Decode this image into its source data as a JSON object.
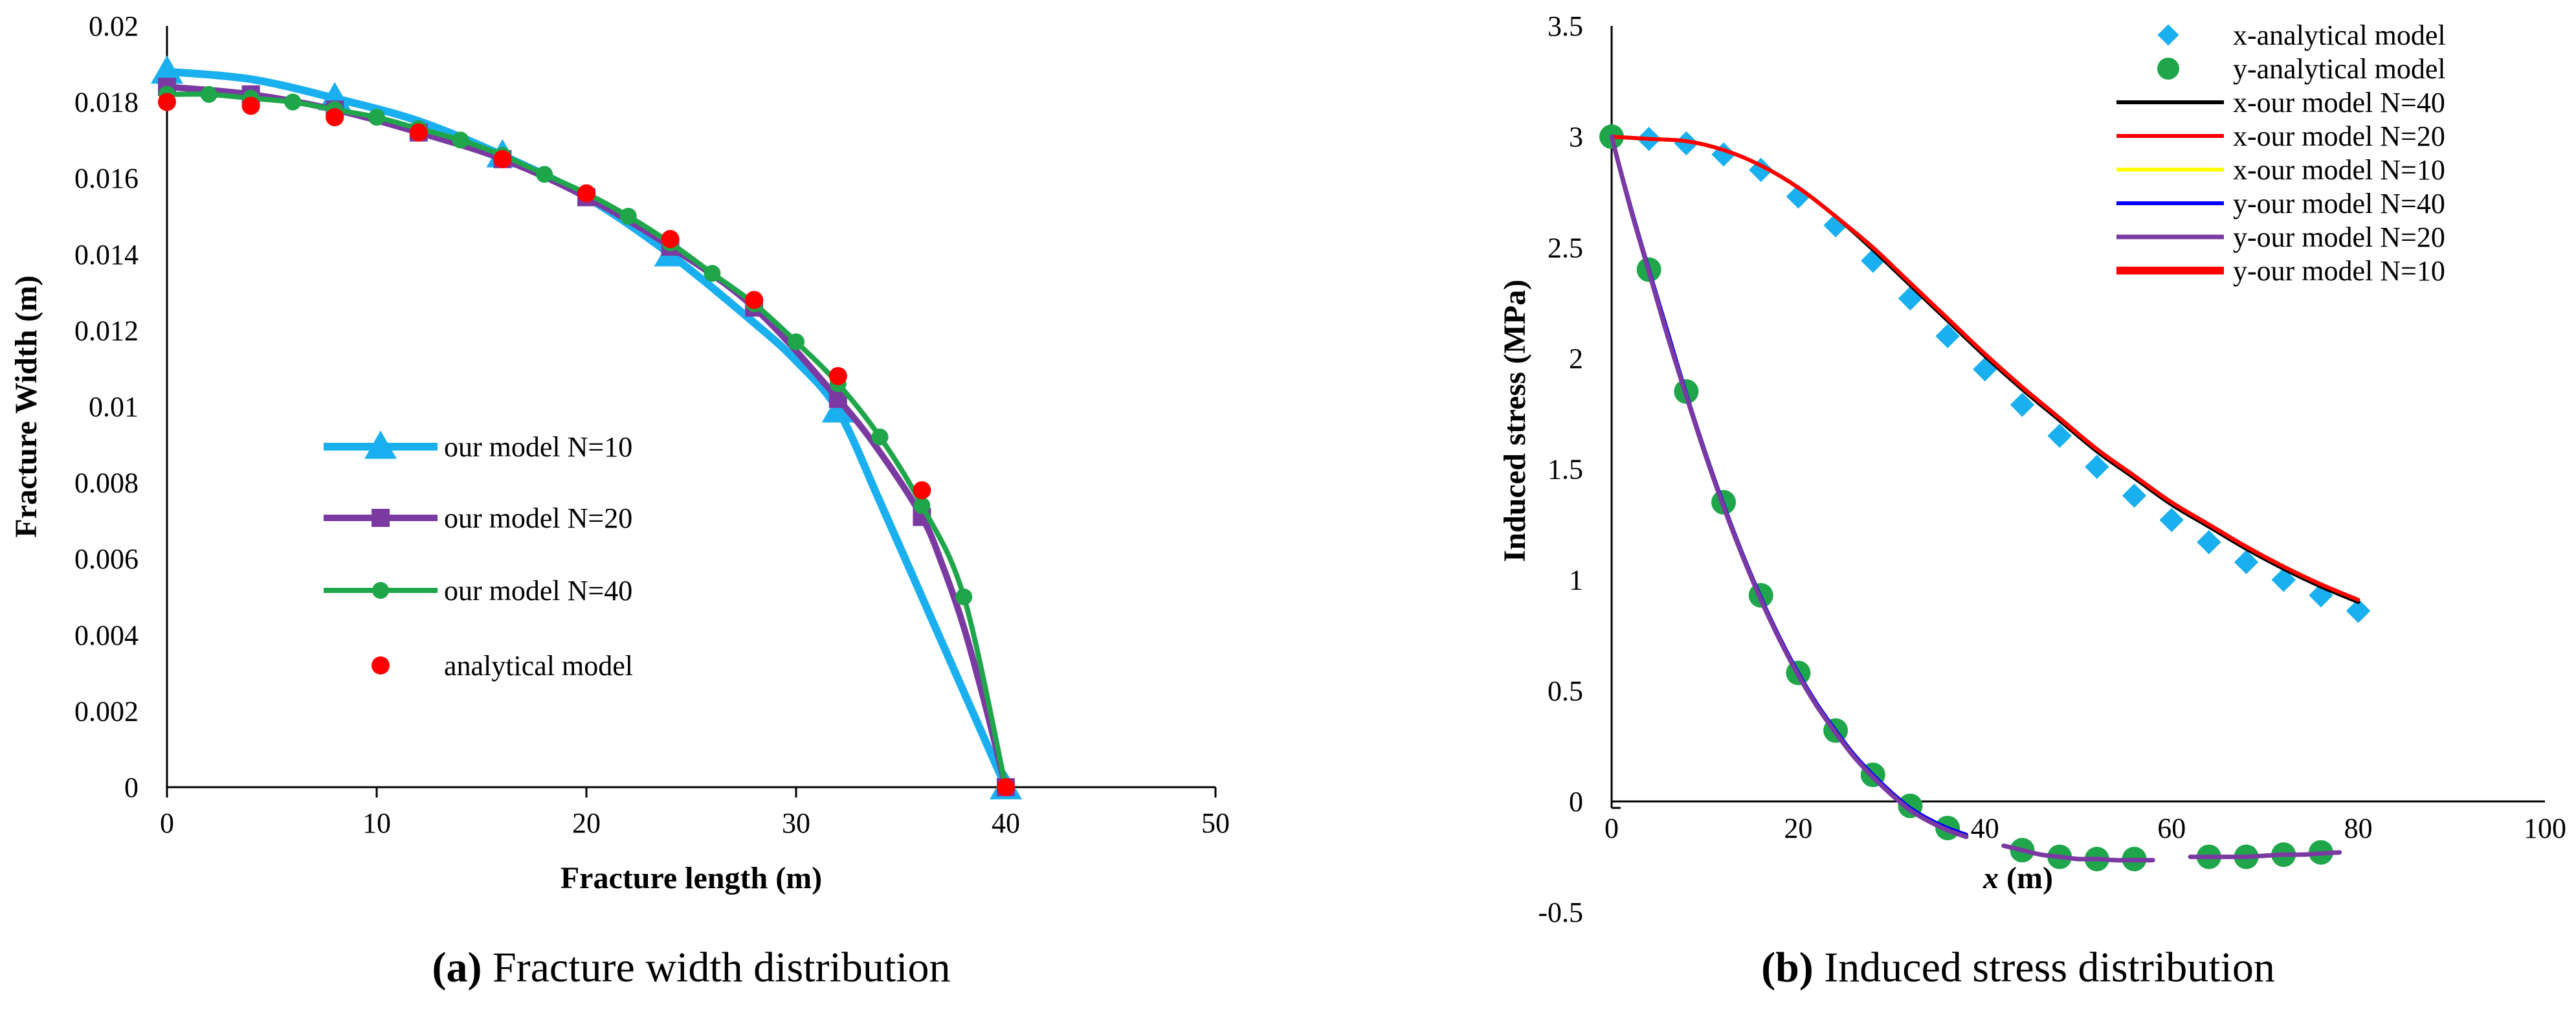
{
  "chart_data": [
    {
      "type": "line",
      "panel": "a",
      "caption": {
        "label": "(a)",
        "text": "Fracture width distribution"
      },
      "xlabel": "Fracture length  (m)",
      "ylabel": "Fracture Width  (m)",
      "xlim": [
        0,
        50
      ],
      "ylim": [
        0,
        0.02
      ],
      "xticks": [
        0,
        10,
        20,
        30,
        40,
        50
      ],
      "yticks": [
        0,
        0.002,
        0.004,
        0.006,
        0.008,
        0.01,
        0.012,
        0.014,
        0.016,
        0.018,
        0.02
      ],
      "legend_position": "center-left",
      "series": [
        {
          "name": "our model N=10",
          "color": "#1ab0ef",
          "marker": "triangle",
          "line_width": 12,
          "x": [
            0,
            8,
            16,
            24,
            32,
            40
          ],
          "y": [
            0.0188,
            0.0181,
            0.0166,
            0.014,
            0.0099,
            0.0
          ],
          "curve_x": [
            0,
            4,
            8,
            12,
            16,
            20,
            24,
            28,
            30,
            32,
            34,
            36,
            38,
            40
          ],
          "curve_y": [
            0.0188,
            0.0186,
            0.0181,
            0.0175,
            0.0166,
            0.0155,
            0.014,
            0.0122,
            0.0112,
            0.0099,
            0.0075,
            0.005,
            0.0025,
            0.0
          ]
        },
        {
          "name": "our model N=20",
          "color": "#7b3aa2",
          "marker": "square",
          "line_width": 10,
          "x": [
            0,
            4,
            8,
            12,
            16,
            20,
            24,
            28,
            32,
            36,
            40
          ],
          "y": [
            0.0184,
            0.0182,
            0.0178,
            0.0172,
            0.0165,
            0.0155,
            0.0142,
            0.0126,
            0.0102,
            0.0071,
            0.0
          ],
          "curve_x": [
            0,
            4,
            8,
            12,
            16,
            20,
            24,
            28,
            32,
            34,
            36,
            37,
            38,
            39,
            40
          ],
          "curve_y": [
            0.0184,
            0.0182,
            0.0178,
            0.0172,
            0.0165,
            0.0155,
            0.0142,
            0.0126,
            0.0102,
            0.0088,
            0.0071,
            0.0058,
            0.0042,
            0.0022,
            0.0
          ]
        },
        {
          "name": "our model N=40",
          "color": "#1fa64a",
          "marker": "circle",
          "line_width": 8,
          "x": [
            0,
            2,
            4,
            6,
            8,
            10,
            12,
            14,
            16,
            18,
            20,
            22,
            24,
            26,
            28,
            30,
            32,
            34,
            36,
            38,
            40
          ],
          "y": [
            0.0182,
            0.0182,
            0.0181,
            0.018,
            0.0178,
            0.0176,
            0.0173,
            0.017,
            0.0166,
            0.0161,
            0.0156,
            0.015,
            0.0143,
            0.0135,
            0.0127,
            0.0117,
            0.0106,
            0.0092,
            0.0074,
            0.005,
            0.0
          ]
        },
        {
          "name": "analytical model",
          "color": "#ff0000",
          "marker": "circle",
          "line_width": 0,
          "x": [
            0,
            4,
            8,
            12,
            16,
            20,
            24,
            28,
            32,
            36,
            40
          ],
          "y": [
            0.018,
            0.0179,
            0.0176,
            0.0172,
            0.0165,
            0.0156,
            0.0144,
            0.0128,
            0.0108,
            0.0078,
            0.0
          ]
        }
      ]
    },
    {
      "type": "line",
      "panel": "b",
      "caption": {
        "label": "(b)",
        "text": "Induced stress distribution"
      },
      "xlabel_italic": "x",
      "xlabel_rest": " (m)",
      "ylabel": "Induced stress  (MPa)",
      "xlim": [
        0,
        100
      ],
      "ylim": [
        -0.5,
        3.5
      ],
      "xticks": [
        0,
        20,
        40,
        60,
        80,
        100
      ],
      "yticks": [
        -0.5,
        0,
        0.5,
        1,
        1.5,
        2,
        2.5,
        3,
        3.5
      ],
      "legend_position": "top-right",
      "series": [
        {
          "name": "x-analytical model",
          "color": "#1ab0ef",
          "marker": "diamond",
          "line_width": 0,
          "x": [
            0,
            4,
            8,
            12,
            16,
            20,
            24,
            28,
            32,
            36,
            40,
            44,
            48,
            52,
            56,
            60,
            64,
            68,
            72,
            76,
            80
          ],
          "y": [
            3.0,
            2.99,
            2.97,
            2.92,
            2.85,
            2.73,
            2.6,
            2.44,
            2.27,
            2.1,
            1.95,
            1.79,
            1.65,
            1.51,
            1.38,
            1.27,
            1.17,
            1.08,
            1.0,
            0.93,
            0.86
          ]
        },
        {
          "name": "y-analytical model",
          "color": "#1fa64a",
          "marker": "circle",
          "line_width": 0,
          "x": [
            0,
            4,
            8,
            12,
            16,
            20,
            24,
            28,
            32,
            36,
            44,
            48,
            52,
            56,
            64,
            68,
            72,
            76
          ],
          "y": [
            3.0,
            2.4,
            1.85,
            1.35,
            0.93,
            0.58,
            0.32,
            0.12,
            -0.02,
            -0.12,
            -0.22,
            -0.25,
            -0.26,
            -0.26,
            -0.25,
            -0.25,
            -0.24,
            -0.23
          ]
        },
        {
          "name": "x-our model N=40",
          "color": "#000000",
          "marker": "none",
          "line_width": 6,
          "x": [
            0,
            4,
            8,
            12,
            16,
            20,
            24,
            28,
            32,
            36,
            40,
            44,
            48,
            52,
            56,
            60,
            64,
            68,
            72,
            76,
            80
          ],
          "y": [
            3.0,
            2.99,
            2.98,
            2.94,
            2.87,
            2.77,
            2.64,
            2.49,
            2.33,
            2.17,
            2.01,
            1.86,
            1.72,
            1.58,
            1.46,
            1.34,
            1.24,
            1.14,
            1.05,
            0.97,
            0.9
          ]
        },
        {
          "name": "x-our model N=20",
          "color": "#ff0000",
          "marker": "none",
          "line_width": 6,
          "x": [
            0,
            4,
            8,
            12,
            16,
            20,
            24,
            28,
            32,
            36,
            40,
            44,
            48,
            52,
            56,
            60,
            64,
            68,
            72,
            76,
            80
          ],
          "y": [
            3.0,
            2.99,
            2.98,
            2.94,
            2.87,
            2.77,
            2.64,
            2.5,
            2.34,
            2.18,
            2.02,
            1.87,
            1.73,
            1.59,
            1.47,
            1.35,
            1.25,
            1.15,
            1.06,
            0.98,
            0.91
          ]
        },
        {
          "name": "x-our model N=10",
          "color": "#ffff00",
          "marker": "none",
          "line_width": 6,
          "x": [
            0,
            4,
            8,
            12,
            16,
            20,
            24,
            28,
            32,
            36,
            40,
            44,
            48,
            52,
            56,
            60,
            64,
            68,
            72,
            76,
            80
          ],
          "y": [
            3.0,
            2.99,
            2.98,
            2.94,
            2.87,
            2.77,
            2.64,
            2.5,
            2.34,
            2.18,
            2.02,
            1.87,
            1.73,
            1.59,
            1.47,
            1.35,
            1.25,
            1.15,
            1.06,
            0.98,
            0.91
          ]
        },
        {
          "name": "y-our model N=40",
          "color": "#0000ff",
          "marker": "none",
          "line_width": 6,
          "x": [
            0,
            2,
            4,
            6,
            8,
            10,
            12,
            14,
            16,
            18,
            20,
            22,
            24,
            26,
            28,
            30,
            32,
            34,
            36,
            38
          ],
          "y": [
            3.0,
            2.69,
            2.4,
            2.12,
            1.84,
            1.58,
            1.34,
            1.12,
            0.92,
            0.74,
            0.58,
            0.44,
            0.32,
            0.21,
            0.12,
            0.04,
            -0.03,
            -0.08,
            -0.12,
            -0.15
          ]
        },
        {
          "name": "y-our model N=20",
          "color": "#7b3aa2",
          "marker": "none",
          "line_width": 7,
          "x": [
            0,
            2,
            4,
            6,
            8,
            10,
            12,
            14,
            16,
            18,
            20,
            22,
            24,
            26,
            28,
            30,
            32,
            34,
            36,
            38
          ],
          "y": [
            3.0,
            2.68,
            2.39,
            2.1,
            1.83,
            1.57,
            1.33,
            1.11,
            0.91,
            0.73,
            0.57,
            0.43,
            0.31,
            0.2,
            0.11,
            0.03,
            -0.04,
            -0.09,
            -0.13,
            -0.16
          ],
          "segments": [
            {
              "x": [
                42,
                44,
                46,
                48,
                50,
                52,
                54,
                56,
                58
              ],
              "y": [
                -0.2,
                -0.22,
                -0.24,
                -0.25,
                -0.26,
                -0.26,
                -0.265,
                -0.265,
                -0.265
              ]
            },
            {
              "x": [
                62,
                64,
                66,
                68,
                70,
                72,
                74,
                76,
                78
              ],
              "y": [
                -0.25,
                -0.25,
                -0.25,
                -0.25,
                -0.245,
                -0.24,
                -0.24,
                -0.235,
                -0.23
              ]
            }
          ]
        },
        {
          "name": "y-our model N=10",
          "color": "#ff0000",
          "marker": "none",
          "line_width": 12,
          "legend_only": true,
          "x": [],
          "y": []
        }
      ]
    }
  ]
}
